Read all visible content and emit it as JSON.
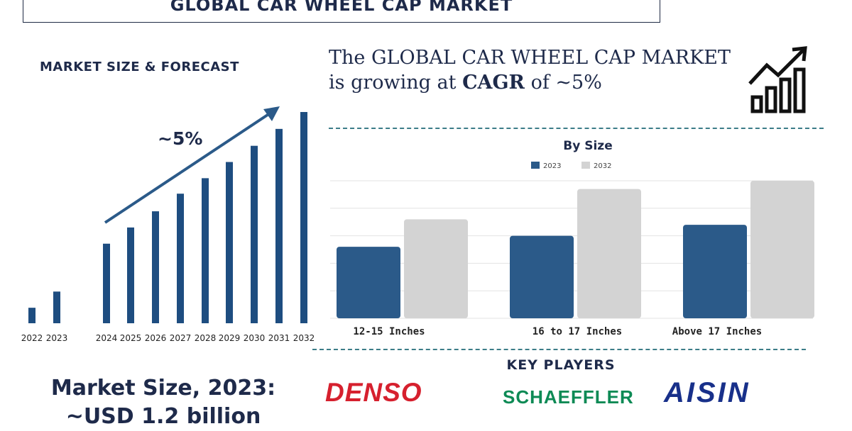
{
  "header": {
    "title": "GLOBAL CAR WHEEL CAP MARKET"
  },
  "left": {
    "section_title": "MARKET SIZE & FORECAST",
    "growth_label": "~5%",
    "market_size_line1": "Market Size, 2023:",
    "market_size_line2": "~USD 1.2 billion"
  },
  "headline": {
    "line1": "The GLOBAL CAR WHEEL CAP MARKET",
    "line2_prefix": "is growing at ",
    "line2_bold": "CAGR",
    "line2_suffix": " of ~5%"
  },
  "key_players": {
    "title": "KEY PLAYERS",
    "logos": [
      "DENSO",
      "SCHAEFFLER",
      "AISIN"
    ]
  },
  "colors": {
    "bar_dark": "#1e4d80",
    "bar_2023": "#2b5a89",
    "bar_2032": "#d3d3d3",
    "navy": "#1e2a4a",
    "dash": "#3c7d88"
  },
  "chart_data": [
    {
      "type": "bar",
      "title": "MARKET SIZE & FORECAST",
      "categories": [
        "2022",
        "2023",
        "2024",
        "2025",
        "2026",
        "2027",
        "2028",
        "2029",
        "2030",
        "2031",
        "2032"
      ],
      "values": [
        22,
        45,
        113,
        136,
        159,
        184,
        206,
        229,
        252,
        276,
        300
      ],
      "ylim": [
        0,
        300
      ],
      "note": "relative market size, no y-axis shown",
      "annotation": "~5%"
    },
    {
      "type": "bar",
      "title": "By Size",
      "categories": [
        "12-15 Inches",
        "16 to 17 Inches",
        "Above 17 Inches"
      ],
      "series": [
        {
          "name": "2023",
          "values": [
            2.6,
            3.0,
            3.4
          ]
        },
        {
          "name": "2032",
          "values": [
            3.6,
            4.7,
            5.0
          ]
        }
      ],
      "ylim": [
        0,
        5
      ],
      "grid": true,
      "legend": "top-center"
    }
  ]
}
